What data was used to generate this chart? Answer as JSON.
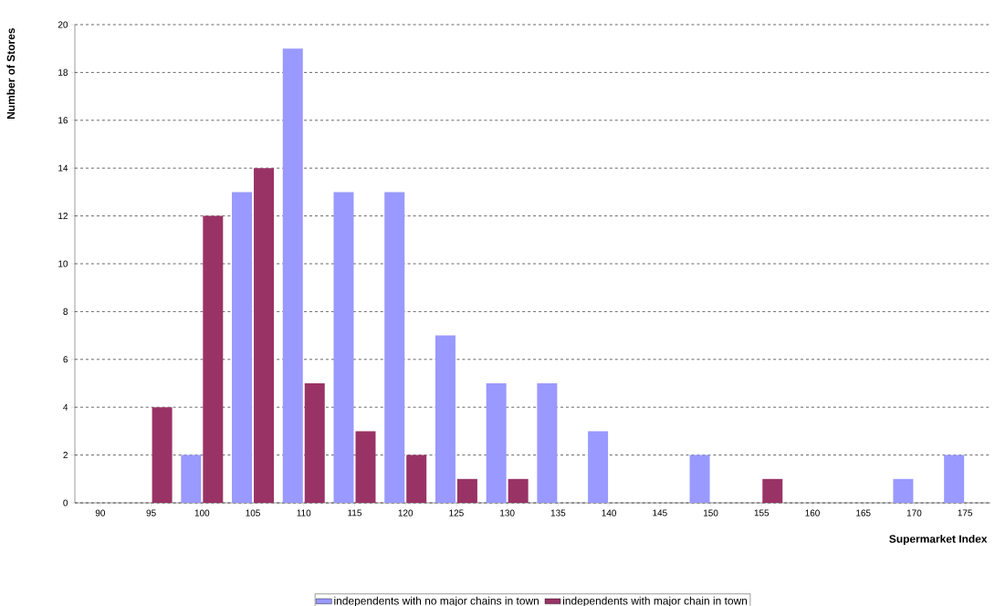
{
  "chart_data": {
    "type": "bar",
    "xlabel": "Supermarket Index",
    "ylabel": "Number of Stores",
    "categories": [
      "90",
      "95",
      "100",
      "105",
      "110",
      "115",
      "120",
      "125",
      "130",
      "135",
      "140",
      "145",
      "150",
      "155",
      "160",
      "165",
      "170",
      "175"
    ],
    "series": [
      {
        "name": "independents with no major chains in town",
        "color": "#9999ff",
        "values": [
          0,
          0,
          2,
          13,
          19,
          13,
          13,
          7,
          5,
          5,
          3,
          0,
          2,
          0,
          0,
          0,
          1,
          2
        ]
      },
      {
        "name": "independents with major chain in town",
        "color": "#993366",
        "values": [
          0,
          4,
          12,
          14,
          5,
          3,
          2,
          1,
          1,
          0,
          0,
          0,
          0,
          1,
          0,
          0,
          0,
          0
        ]
      }
    ],
    "ylim": [
      0,
      20
    ],
    "yticks": [
      0,
      2,
      4,
      6,
      8,
      10,
      12,
      14,
      16,
      18,
      20
    ],
    "grid": "y",
    "legend": "bottom"
  }
}
